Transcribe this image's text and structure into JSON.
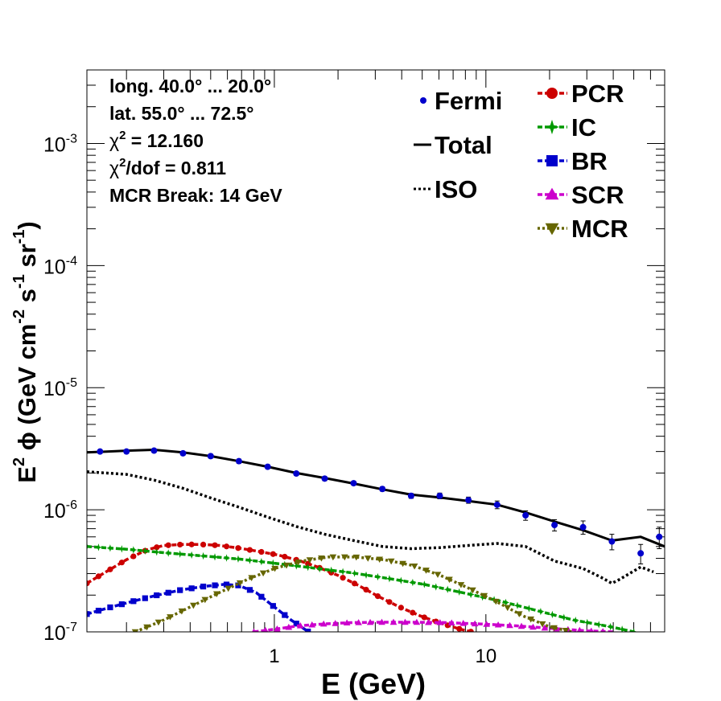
{
  "chart_data": {
    "type": "line",
    "xlabel": "E (GeV)",
    "ylabel_parts": [
      "E",
      "2",
      "  ϕ (GeV cm",
      "-2",
      " s",
      "-1",
      " sr",
      "-1",
      ")"
    ],
    "x_scale": "log",
    "y_scale": "log",
    "xlim": [
      0.13,
      70
    ],
    "ylim": [
      1e-07,
      0.004
    ],
    "x_ticks": [
      {
        "value": 1,
        "label": "1"
      },
      {
        "value": 10,
        "label": "10"
      }
    ],
    "y_ticks": [
      {
        "value": 1e-07,
        "base": "10",
        "exp": "-7"
      },
      {
        "value": 1e-06,
        "base": "10",
        "exp": "-6"
      },
      {
        "value": 1e-05,
        "base": "10",
        "exp": "-5"
      },
      {
        "value": 0.0001,
        "base": "10",
        "exp": "-4"
      },
      {
        "value": 0.001,
        "base": "10",
        "exp": "-3"
      }
    ],
    "info_lines": [
      {
        "text": "long. 40.0° ... 20.0°"
      },
      {
        "text": "lat. 55.0° ... 72.5°"
      },
      {
        "pre": "χ",
        "sup": "2",
        "text": " = 12.160"
      },
      {
        "pre": "χ",
        "sup": "2",
        "text": "/dof = 0.811"
      },
      {
        "text": "MCR Break: 14 GeV"
      }
    ],
    "fermi": {
      "name": "Fermi",
      "color": "#0000cc",
      "points": [
        {
          "x": 0.15,
          "y": 3e-06,
          "err": 1e-07
        },
        {
          "x": 0.2,
          "y": 3e-06,
          "err": 1e-07
        },
        {
          "x": 0.27,
          "y": 3.05e-06,
          "err": 1e-07
        },
        {
          "x": 0.37,
          "y": 2.9e-06,
          "err": 1e-07
        },
        {
          "x": 0.5,
          "y": 2.75e-06,
          "err": 1e-07
        },
        {
          "x": 0.68,
          "y": 2.5e-06,
          "err": 1e-07
        },
        {
          "x": 0.93,
          "y": 2.25e-06,
          "err": 8e-08
        },
        {
          "x": 1.27,
          "y": 1.98e-06,
          "err": 7e-08
        },
        {
          "x": 1.73,
          "y": 1.8e-06,
          "err": 7e-08
        },
        {
          "x": 2.37,
          "y": 1.65e-06,
          "err": 6e-08
        },
        {
          "x": 3.24,
          "y": 1.48e-06,
          "err": 6e-08
        },
        {
          "x": 4.43,
          "y": 1.3e-06,
          "err": 6e-08
        },
        {
          "x": 6.05,
          "y": 1.3e-06,
          "err": 7e-08
        },
        {
          "x": 8.27,
          "y": 1.2e-06,
          "err": 7e-08
        },
        {
          "x": 11.3,
          "y": 1.1e-06,
          "err": 8e-08
        },
        {
          "x": 15.4,
          "y": 9e-07,
          "err": 8e-08
        },
        {
          "x": 21.1,
          "y": 7.5e-07,
          "err": 8e-08
        },
        {
          "x": 28.8,
          "y": 7.2e-07,
          "err": 9e-08
        },
        {
          "x": 39.4,
          "y": 5.5e-07,
          "err": 8e-08
        },
        {
          "x": 53.9,
          "y": 4.4e-07,
          "err": 8e-08
        },
        {
          "x": 66.0,
          "y": 6e-07,
          "err": 1.2e-07
        }
      ]
    },
    "series": [
      {
        "name": "Total",
        "style": "solid",
        "color": "#000000",
        "marker": "none",
        "x": [
          0.13,
          0.2,
          0.27,
          0.37,
          0.5,
          0.68,
          0.93,
          1.27,
          1.73,
          2.37,
          3.24,
          4.43,
          6.05,
          8.27,
          11.3,
          15.4,
          21.1,
          28.8,
          39.4,
          53.9,
          70
        ],
        "y": [
          2.95e-06,
          3.05e-06,
          3.1e-06,
          2.95e-06,
          2.75e-06,
          2.5e-06,
          2.25e-06,
          2e-06,
          1.82e-06,
          1.64e-06,
          1.47e-06,
          1.33e-06,
          1.26e-06,
          1.18e-06,
          1.1e-06,
          9.5e-07,
          8e-07,
          6.8e-07,
          5.6e-07,
          6e-07,
          5e-07
        ]
      },
      {
        "name": "ISO",
        "style": "dotted",
        "color": "#000000",
        "marker": "none",
        "x": [
          0.13,
          0.2,
          0.27,
          0.37,
          0.5,
          0.68,
          0.93,
          1.27,
          1.73,
          2.37,
          3.24,
          4.43,
          6.05,
          8.27,
          11.3,
          15.4,
          21.1,
          28.8,
          35,
          39.4,
          43,
          53.9,
          62
        ],
        "y": [
          2.05e-06,
          1.95e-06,
          1.75e-06,
          1.5e-06,
          1.25e-06,
          1.05e-06,
          8.7e-07,
          7.3e-07,
          6.3e-07,
          5.6e-07,
          5e-07,
          4.8e-07,
          4.9e-07,
          5.1e-07,
          5.3e-07,
          5e-07,
          3.8e-07,
          3.3e-07,
          2.8e-07,
          2.5e-07,
          2.7e-07,
          3.4e-07,
          3.1e-07
        ]
      },
      {
        "name": "PCR",
        "style": "dashed",
        "color": "#cc0000",
        "marker": "circle",
        "x": [
          0.13,
          0.16,
          0.2,
          0.25,
          0.3,
          0.37,
          0.45,
          0.55,
          0.68,
          0.85,
          1.05,
          1.3,
          1.6,
          2.0,
          2.5,
          3.1,
          3.9,
          4.9,
          6.1,
          7.6,
          8.6
        ],
        "y": [
          2.5e-07,
          3.1e-07,
          3.9e-07,
          4.7e-07,
          5.1e-07,
          5.2e-07,
          5.2e-07,
          5.1e-07,
          4.85e-07,
          4.55e-07,
          4.25e-07,
          3.85e-07,
          3.4e-07,
          2.9e-07,
          2.4e-07,
          1.95e-07,
          1.6e-07,
          1.35e-07,
          1.18e-07,
          1.05e-07,
          1e-07
        ]
      },
      {
        "name": "IC",
        "style": "dashed",
        "color": "#009900",
        "marker": "star",
        "x": [
          0.13,
          0.2,
          0.3,
          0.45,
          0.68,
          1.0,
          1.5,
          2.3,
          3.4,
          5.1,
          7.7,
          11.5,
          17.3,
          26,
          39,
          50
        ],
        "y": [
          5e-07,
          4.75e-07,
          4.45e-07,
          4.2e-07,
          3.95e-07,
          3.65e-07,
          3.35e-07,
          3.05e-07,
          2.75e-07,
          2.45e-07,
          2.1e-07,
          1.8e-07,
          1.5e-07,
          1.25e-07,
          1.1e-07,
          1e-07
        ]
      },
      {
        "name": "BR",
        "style": "dashed",
        "color": "#0000cc",
        "marker": "square",
        "x": [
          0.13,
          0.17,
          0.22,
          0.28,
          0.36,
          0.46,
          0.58,
          0.68,
          0.82,
          1.0,
          1.2,
          1.45
        ],
        "y": [
          1.4e-07,
          1.6e-07,
          1.8e-07,
          2e-07,
          2.2e-07,
          2.35e-07,
          2.45e-07,
          2.4e-07,
          2.1e-07,
          1.6e-07,
          1.25e-07,
          1e-07
        ]
      },
      {
        "name": "SCR",
        "style": "dashed",
        "color": "#cc00cc",
        "marker": "triangle",
        "x": [
          0.8,
          1.0,
          1.3,
          1.7,
          2.3,
          3.2,
          4.5,
          6.5,
          9.5,
          14,
          20,
          30,
          40
        ],
        "y": [
          1e-07,
          1.05e-07,
          1.12e-07,
          1.16e-07,
          1.19e-07,
          1.2e-07,
          1.2e-07,
          1.19e-07,
          1.16e-07,
          1.12e-07,
          1.07e-07,
          1.02e-07,
          1e-07
        ]
      },
      {
        "name": "MCR",
        "style": "dotted",
        "color": "#666600",
        "marker": "triangle-down",
        "x": [
          0.22,
          0.3,
          0.4,
          0.55,
          0.75,
          1.0,
          1.35,
          1.8,
          2.4,
          3.3,
          4.5,
          6.1,
          8.2,
          11,
          15,
          20,
          25.5
        ],
        "y": [
          1e-07,
          1.25e-07,
          1.6e-07,
          2.1e-07,
          2.7e-07,
          3.3e-07,
          3.8e-07,
          4.1e-07,
          4.1e-07,
          3.9e-07,
          3.5e-07,
          2.9e-07,
          2.3e-07,
          1.8e-07,
          1.35e-07,
          1.1e-07,
          1e-07
        ]
      }
    ],
    "legend_left": [
      {
        "label": "Fermi",
        "kind": "fermi"
      },
      {
        "label": "Total",
        "kind": "Total"
      },
      {
        "label": "ISO",
        "kind": "ISO"
      }
    ],
    "legend_right": [
      {
        "label": "PCR",
        "kind": "PCR"
      },
      {
        "label": "IC",
        "kind": "IC"
      },
      {
        "label": "BR",
        "kind": "BR"
      },
      {
        "label": "SCR",
        "kind": "SCR"
      },
      {
        "label": "MCR",
        "kind": "MCR"
      }
    ]
  }
}
